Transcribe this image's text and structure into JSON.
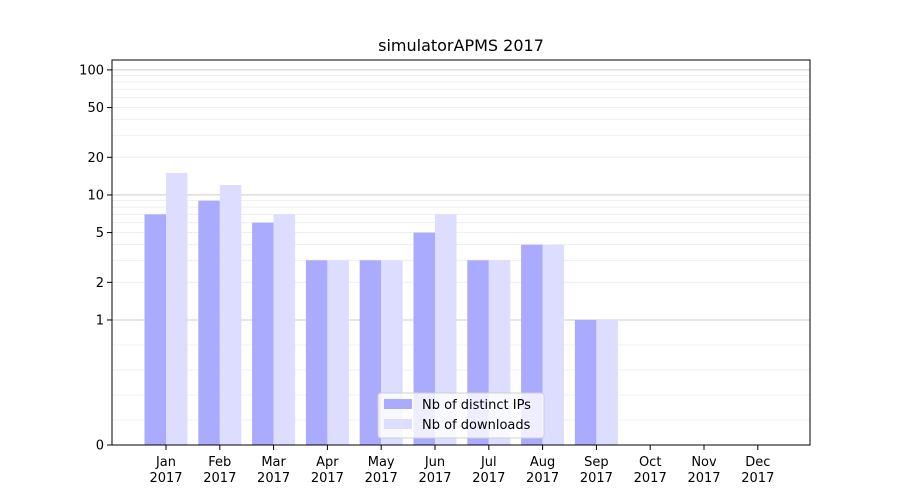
{
  "chart_data": {
    "type": "bar",
    "title": "simulatorAPMS 2017",
    "xlabel": "",
    "ylabel": "",
    "yscale": "symlog",
    "ylim": [
      0,
      120
    ],
    "y_ticks": [
      0,
      1,
      2,
      5,
      10,
      20,
      50,
      100
    ],
    "grid": true,
    "legend_position": "bottom-center",
    "categories": [
      "Jan\n2017",
      "Feb\n2017",
      "Mar\n2017",
      "Apr\n2017",
      "May\n2017",
      "Jun\n2017",
      "Jul\n2017",
      "Aug\n2017",
      "Sep\n2017",
      "Oct\n2017",
      "Nov\n2017",
      "Dec\n2017"
    ],
    "series": [
      {
        "name": "Nb of distinct IPs",
        "color": "#aaaaff",
        "values": [
          7,
          9,
          6,
          3,
          3,
          5,
          3,
          4,
          1,
          0,
          0,
          0
        ]
      },
      {
        "name": "Nb of downloads",
        "color": "#ddddff",
        "values": [
          15,
          12,
          7,
          3,
          3,
          7,
          3,
          4,
          1,
          0,
          0,
          0
        ]
      }
    ]
  }
}
